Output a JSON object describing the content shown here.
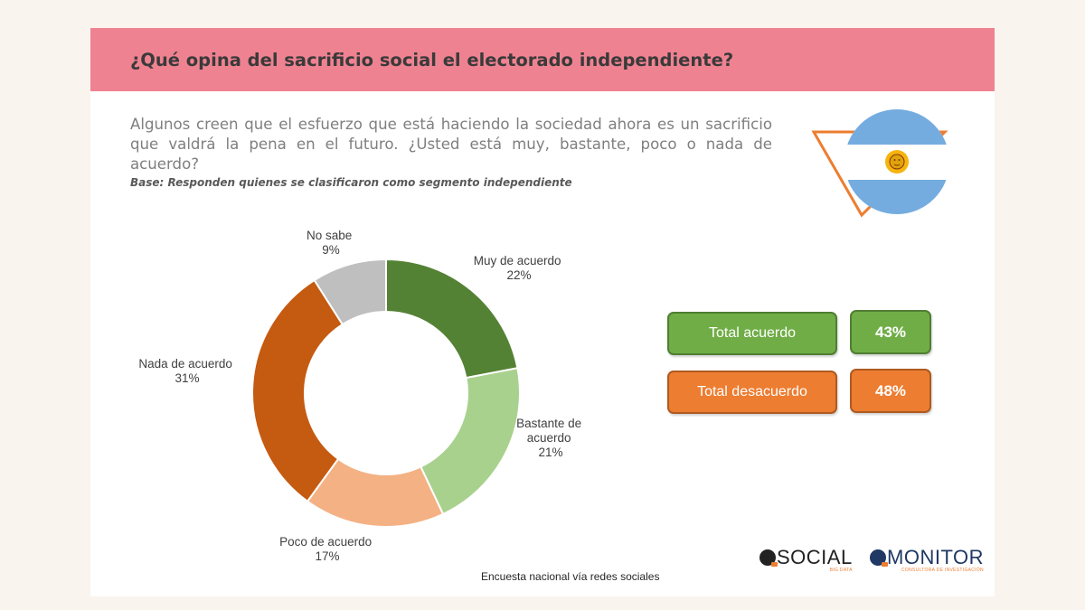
{
  "header": {
    "title": "¿Qué opina del sacrificio social el electorado independiente?"
  },
  "question": {
    "text": "Algunos creen que el esfuerzo que está haciendo la sociedad ahora es un sacrificio que valdrá la pena en el futuro. ¿Usted está muy, bastante, poco o nada de acuerdo?",
    "base": "Base: Responden quienes se clasificaron como segmento independiente"
  },
  "chart_data": {
    "type": "pie",
    "title": "",
    "donut": true,
    "categories": [
      "Muy de acuerdo",
      "Bastante de acuerdo",
      "Poco de acuerdo",
      "Nada de acuerdo",
      "No sabe"
    ],
    "values": [
      22,
      21,
      17,
      31,
      9
    ],
    "value_labels": [
      "22%",
      "21%",
      "17%",
      "31%",
      "9%"
    ],
    "colors": [
      "#548235",
      "#a9d18e",
      "#f4b183",
      "#c55a11",
      "#bfbfbf"
    ]
  },
  "totals": [
    {
      "label": "Total acuerdo",
      "value": "43%",
      "color": "#70ad47"
    },
    {
      "label": "Total desacuerdo",
      "value": "48%",
      "color": "#ed7d31"
    }
  ],
  "footer": {
    "source": "Encuesta nacional vía redes sociales",
    "logos": [
      {
        "name": "SOCIAL",
        "sub": "BIG DATA"
      },
      {
        "name": "MONITOR",
        "sub": "CONSULTORA DE INVESTIGACIÓN"
      }
    ]
  }
}
